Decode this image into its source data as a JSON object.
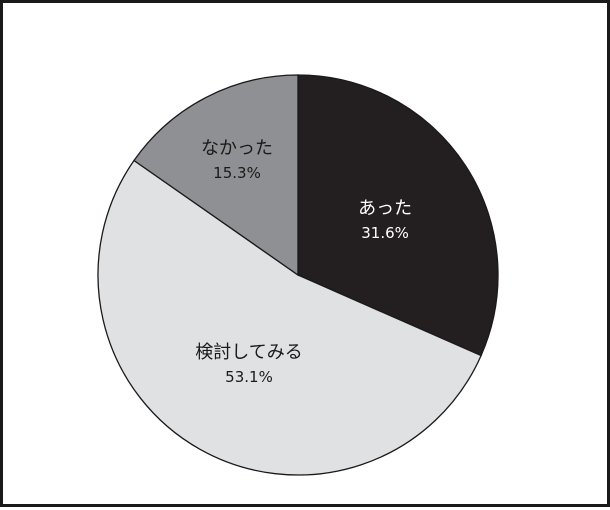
{
  "chart_data": {
    "type": "pie",
    "title": "",
    "start_angle_deg": 0,
    "direction": "clockwise",
    "slices": [
      {
        "label": "あった",
        "value": 31.6,
        "pct_label": "31.6%",
        "color": "#231f20",
        "text_color": "#ffffff"
      },
      {
        "label": "検討してみる",
        "value": 53.1,
        "pct_label": "53.1%",
        "color": "#e0e1e3",
        "text_color": "#1a1a1a"
      },
      {
        "label": "なかった",
        "value": 15.3,
        "pct_label": "15.3%",
        "color": "#8f9093",
        "text_color": "#1a1a1a"
      }
    ],
    "stroke_color": "#1a1a1a"
  }
}
